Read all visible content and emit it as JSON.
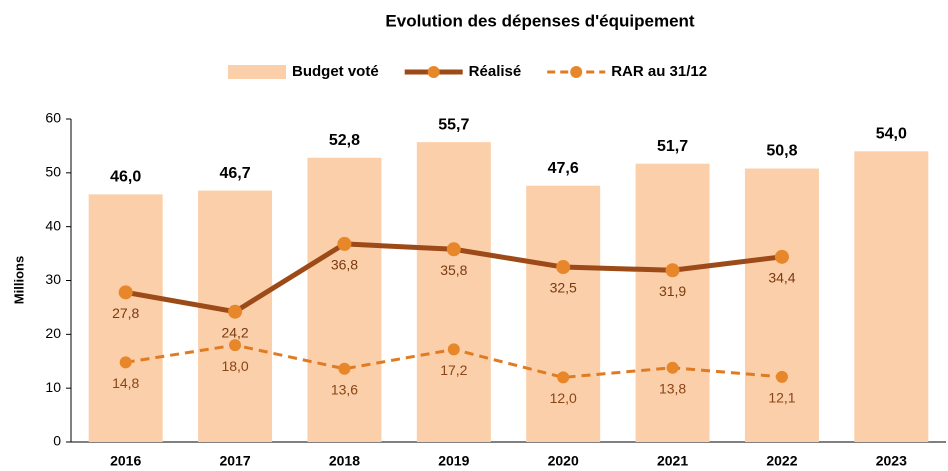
{
  "chart_data": {
    "type": "bar",
    "title": "Evolution des dépenses d'équipement",
    "y_label": "Millions",
    "categories": [
      "2016",
      "2017",
      "2018",
      "2019",
      "2020",
      "2021",
      "2022",
      "2023"
    ],
    "series": [
      {
        "name": "Budget voté",
        "type": "bar",
        "color": "#fbcfaa",
        "values": [
          46.0,
          46.7,
          52.8,
          55.7,
          47.6,
          51.7,
          50.8,
          54.0
        ],
        "value_labels": [
          "46,0",
          "46,7",
          "52,8",
          "55,7",
          "47,6",
          "51,7",
          "50,8",
          "54,0"
        ]
      },
      {
        "name": "Réalisé",
        "type": "line",
        "color": "#9c4a17",
        "marker_color": "#e8862a",
        "line_style": "solid",
        "values": [
          27.8,
          24.2,
          36.8,
          35.8,
          32.5,
          31.9,
          34.4,
          null
        ],
        "value_labels": [
          "27,8",
          "24,2",
          "36,8",
          "35,8",
          "32,5",
          "31,9",
          "34,4",
          null
        ]
      },
      {
        "name": "RAR au 31/12",
        "type": "line",
        "color": "#e07b22",
        "marker_color": "#e8862a",
        "line_style": "dashed",
        "values": [
          14.8,
          18.0,
          13.6,
          17.2,
          12.0,
          13.8,
          12.1,
          null
        ],
        "value_labels": [
          "14,8",
          "18,0",
          "13,6",
          "17,2",
          "12,0",
          "13,8",
          "12,1",
          null
        ]
      }
    ],
    "ylim": [
      0,
      60
    ],
    "yticks": [
      0,
      10,
      20,
      30,
      40,
      50,
      60
    ],
    "grid": false,
    "legend": "top"
  }
}
